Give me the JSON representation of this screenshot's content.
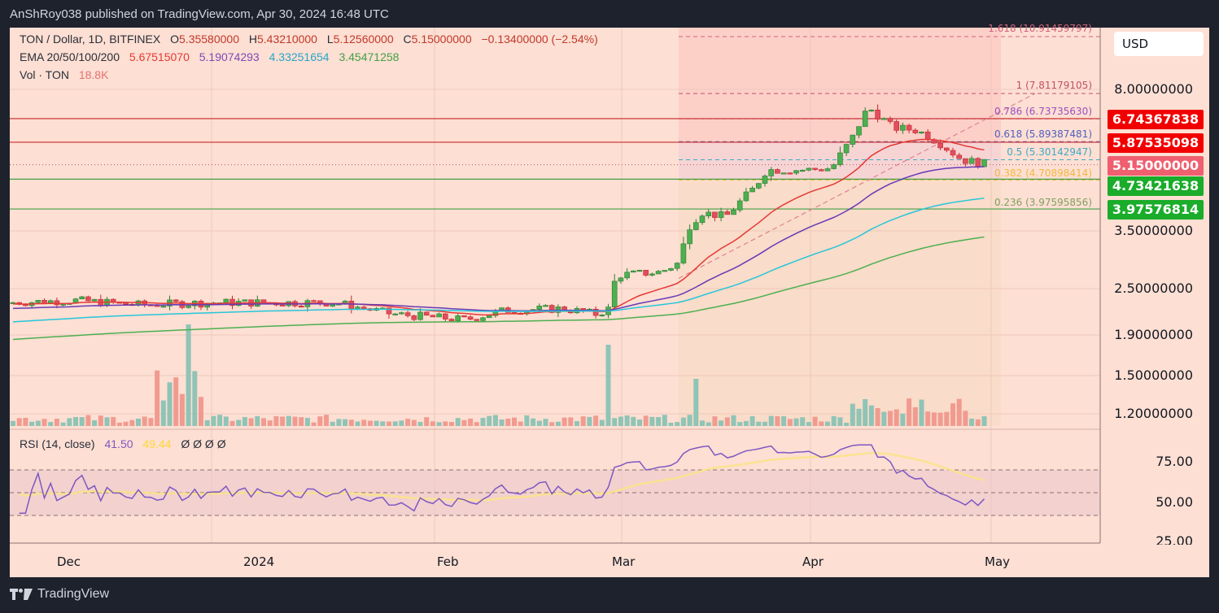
{
  "header": {
    "published": "AnShRoy038 published on TradingView.com, Apr 30, 2024 16:48 UTC"
  },
  "legend": {
    "symbol": "TON / Dollar, 1D, BITFINEX",
    "open_label": "O",
    "open": "5.35580000",
    "high_label": "H",
    "high": "5.43210000",
    "low_label": "L",
    "low": "5.12560000",
    "close_label": "C",
    "close": "5.15000000",
    "change": "−0.13400000 (−2.54%)",
    "ema_label": "EMA 20/50/100/200",
    "ema20": "5.67515070",
    "ema50": "5.19074293",
    "ema100": "4.33251654",
    "ema200": "3.45471258",
    "vol_label": "Vol · TON",
    "vol": "18.8K",
    "rsi_label": "RSI (14, close)",
    "rsi_value": "41.50",
    "rsi_ma": "49.44",
    "rsi_extras": "Ø  Ø  Ø  Ø"
  },
  "currency": "USD",
  "colors": {
    "up": "#26a69a",
    "down": "#ef5350",
    "candle_up": "#4caf50",
    "candle_down": "#e04f5f",
    "ema20": "#e53935",
    "ema50": "#673ab7",
    "ema100": "#26c6da",
    "ema200": "#4caf50",
    "rsi": "#7e57c2",
    "rsi_ma": "#fdd835",
    "bg": "#fddfd3"
  },
  "price_axis": [
    "8.00000000",
    "3.50000000",
    "2.50000000",
    "1.90000000",
    "1.50000000",
    "1.20000000"
  ],
  "price_tags": [
    {
      "value": "6.74367838",
      "color": "#f20000"
    },
    {
      "value": "5.87535098",
      "color": "#f20000"
    },
    {
      "value": "5.15000000",
      "color": "#ef5f6f"
    },
    {
      "value": "4.73421638",
      "color": "#1aac2a"
    },
    {
      "value": "3.97576814",
      "color": "#1aac2a"
    }
  ],
  "fib_levels": [
    {
      "label": "1.618 (10.91459797)",
      "color": "#d0637a"
    },
    {
      "label": "1 (7.81179105)",
      "color": "#c0506a"
    },
    {
      "label": "0.786 (6.73735630)",
      "color": "#9c4fc0"
    },
    {
      "label": "0.618 (5.89387481)",
      "color": "#5060c0"
    },
    {
      "label": "0.5 (5.30142947)",
      "color": "#40a8c8"
    },
    {
      "label": "0.382 (4.70898414)",
      "color": "#f0b840"
    },
    {
      "label": "0.236 (3.97595856)",
      "color": "#80a060"
    }
  ],
  "rsi_axis": [
    "75.00",
    "50.00",
    "25.00"
  ],
  "time_axis": [
    "Dec",
    "2024",
    "Feb",
    "Mar",
    "Apr",
    "May"
  ],
  "footer": {
    "brand": "TradingView"
  },
  "chart_data": {
    "type": "candlestick",
    "title": "TON / Dollar, 1D, BITFINEX",
    "xlabel": "",
    "ylabel": "Price (USD)",
    "scale": "log",
    "ylim": [
      1.1,
      11.0
    ],
    "x_ticks": [
      "Dec",
      "2024",
      "Feb",
      "Mar",
      "Apr",
      "May"
    ],
    "horizontal_levels": [
      6.74367838,
      5.87535098,
      4.73421638,
      3.97576814
    ],
    "fibonacci": {
      "1.618": 10.91459797,
      "1": 7.81179105,
      "0.786": 6.7373563,
      "0.618": 5.89387481,
      "0.5": 5.30142947,
      "0.382": 4.70898414,
      "0.236": 3.97595856
    },
    "last_ohlc": {
      "open": 5.3558,
      "high": 5.4321,
      "low": 5.1256,
      "close": 5.15
    },
    "ema_last": {
      "ema20": 5.6751507,
      "ema50": 5.19074293,
      "ema100": 4.33251654,
      "ema200": 3.45471258
    },
    "volume_last": "18.8K",
    "rsi": {
      "period": 14,
      "last": 41.5,
      "ma": 49.44,
      "bands": [
        70,
        50,
        30
      ]
    },
    "approx_close_path": {
      "Nov-20": 2.28,
      "Dec-01": 2.33,
      "Dec-15": 2.25,
      "Jan-01": 2.28,
      "Jan-15": 2.22,
      "Feb-01": 2.1,
      "Feb-10": 2.05,
      "Feb-15": 2.22,
      "Feb-25": 2.15,
      "Feb-28": 2.3,
      "Mar-01": 2.65,
      "Mar-10": 3.0,
      "Mar-12": 3.9,
      "Mar-20": 3.8,
      "Mar-25": 4.9,
      "Apr-01": 5.0,
      "Apr-05": 5.5,
      "Apr-10": 7.0,
      "Apr-12": 6.5,
      "Apr-15": 6.3,
      "Apr-20": 6.0,
      "Apr-25": 5.4,
      "Apr-30": 5.15
    }
  }
}
